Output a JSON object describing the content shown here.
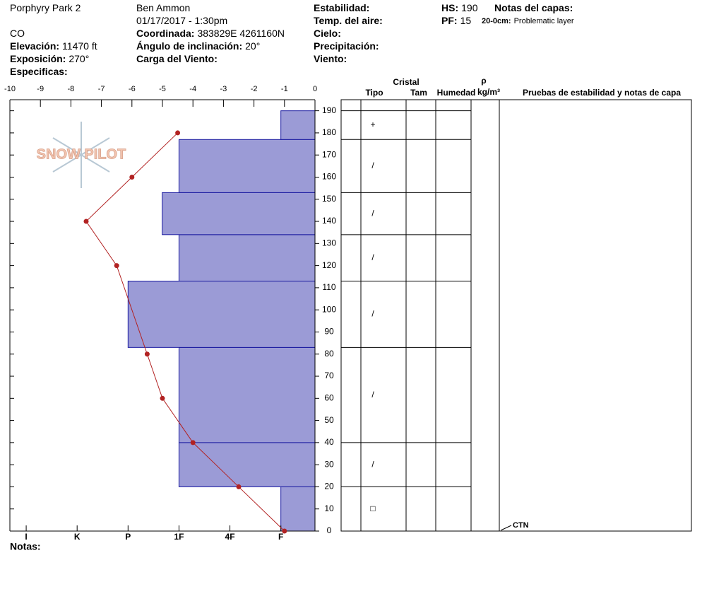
{
  "header": [
    {
      "value": "Porphyry Park 2"
    },
    {
      "value": "CO"
    },
    {
      "label": "Elevación:",
      "value": "11470 ft"
    },
    {
      "label": "Exposición:",
      "value": "270°"
    },
    {
      "label": "Especificas:"
    },
    {
      "value": "Ben Ammon"
    },
    {
      "value": "01/17/2017 - 1:30pm"
    },
    {
      "label": "Coordinada:",
      "value": "383829E 4261160N"
    },
    {
      "label": "Ángulo de inclinación:",
      "value": "20°"
    },
    {
      "label": "Carga del Viento:"
    },
    {
      "label": "Estabilidad:"
    },
    {
      "label": "Temp. del aire:"
    },
    {
      "label": "Cielo:"
    },
    {
      "label": "Precipitación:"
    },
    {
      "label": "Viento:"
    },
    {
      "label": "HS:",
      "value": "190"
    },
    {
      "label": "PF:",
      "value": "15"
    },
    {
      "label": "Notas del capas:"
    },
    {
      "label": "20-0cm:",
      "value": "Problematic layer"
    }
  ],
  "logo": "SNOW PILOT",
  "chart_data": {
    "type": "snow-profile",
    "ylim": [
      0,
      195
    ],
    "yticks": [
      0,
      10,
      20,
      30,
      40,
      50,
      60,
      70,
      80,
      90,
      100,
      110,
      120,
      130,
      140,
      150,
      160,
      170,
      180,
      190
    ],
    "temperature": {
      "color": "#b22222",
      "xlim": [
        -10,
        0
      ],
      "xticks": [
        -10,
        -9,
        -8,
        -7,
        -6,
        -5,
        -4,
        -3,
        -2,
        -1,
        0
      ],
      "heights": [
        0,
        20,
        40,
        60,
        80,
        120,
        140,
        160,
        180
      ],
      "values": [
        -1,
        -2.5,
        -4,
        -5,
        -5.5,
        -6.5,
        -7.5,
        -6,
        -4.5
      ]
    },
    "layers": {
      "color": "#9b9bd6",
      "bottoms": [
        0,
        20,
        40,
        83,
        113,
        134,
        153,
        177
      ],
      "tops": [
        20,
        40,
        83,
        113,
        134,
        153,
        177,
        190
      ],
      "hardness": [
        1,
        3,
        3,
        4,
        3,
        3.33,
        3,
        1
      ],
      "grain": [
        "□",
        "/",
        "/",
        "/",
        "/",
        "/",
        "/",
        "+"
      ]
    },
    "hardness_lim": [
      0.33,
      6.32
    ],
    "hardness_ticks": [
      {
        "value": 6,
        "label": "I"
      },
      {
        "value": 5,
        "label": "K"
      },
      {
        "value": 4,
        "label": "P"
      },
      {
        "value": 3,
        "label": "1F"
      },
      {
        "value": 2,
        "label": "4F"
      },
      {
        "value": 1,
        "label": "F"
      }
    ],
    "columns": {
      "cristal": "Cristal",
      "tipo": "Tipo",
      "tam": "Tam",
      "humedad": "Humedad",
      "rho": "ρ",
      "density": "kg/m³",
      "tests": "Pruebas de estabilidad y notas de capa"
    },
    "test": {
      "label": "CTN",
      "height": 0
    },
    "notes_label": "Notas:"
  }
}
